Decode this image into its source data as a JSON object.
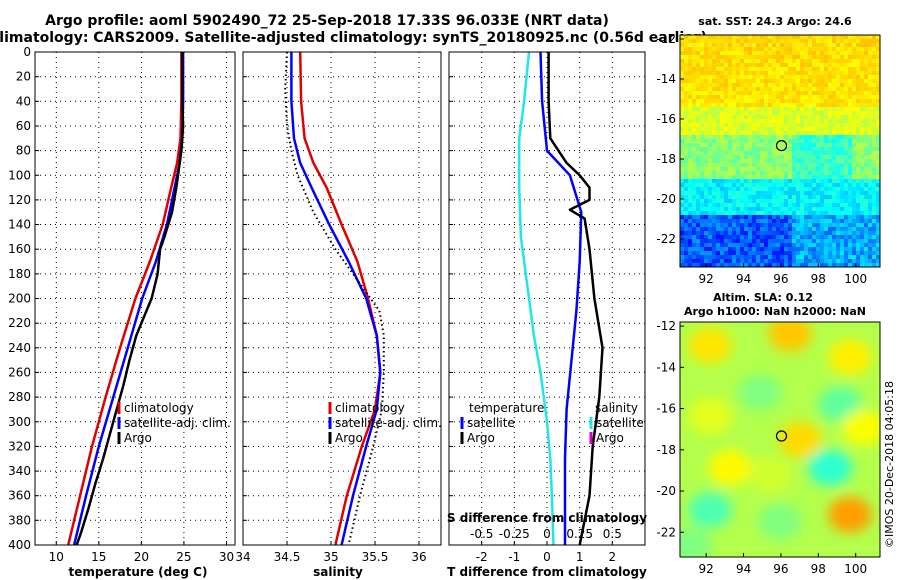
{
  "title_line1": "Argo profile: aoml 5902490_72 25-Sep-2018 17.33S 96.033E (NRT data)",
  "title_line2": "Climatology: CARS2009. Satellite-adjusted climatology: synTS_20180925.nc (0.56d earlier)",
  "watermark": "©IMOS 20-Dec-2018 04:05:18",
  "colors": {
    "climatology": "#e00000",
    "satellite": "#0000ff",
    "argo": "#000000",
    "cyan": "#22e5ec",
    "magenta": "#d000d0"
  },
  "chart_data": [
    {
      "id": "temperature",
      "type": "line",
      "xlabel": "temperature (deg C)",
      "ylabel": "depth (m)",
      "xlim": [
        7.5,
        31
      ],
      "ylim": [
        0,
        400
      ],
      "xticks": [
        10,
        15,
        20,
        25,
        30
      ],
      "yticks": [
        0,
        20,
        40,
        60,
        80,
        100,
        120,
        140,
        160,
        180,
        200,
        220,
        240,
        260,
        280,
        300,
        320,
        340,
        360,
        380,
        400
      ],
      "series": [
        {
          "name": "climatology",
          "color": "#e00000",
          "dotted": false,
          "points": [
            [
              24.7,
              0
            ],
            [
              24.7,
              40
            ],
            [
              24.6,
              70
            ],
            [
              24.2,
              90
            ],
            [
              23.5,
              110
            ],
            [
              22.5,
              140
            ],
            [
              21.0,
              170
            ],
            [
              19.3,
              200
            ],
            [
              17.5,
              240
            ],
            [
              15.8,
              280
            ],
            [
              14.2,
              320
            ],
            [
              12.8,
              360
            ],
            [
              11.4,
              400
            ]
          ]
        },
        {
          "name": "satellite-adj. clim.",
          "color": "#0000ff",
          "dotted": false,
          "points": [
            [
              24.9,
              0
            ],
            [
              24.9,
              40
            ],
            [
              24.8,
              70
            ],
            [
              24.5,
              90
            ],
            [
              23.9,
              110
            ],
            [
              23.0,
              140
            ],
            [
              21.7,
              170
            ],
            [
              20.1,
              200
            ],
            [
              18.4,
              240
            ],
            [
              16.7,
              280
            ],
            [
              15.0,
              320
            ],
            [
              13.5,
              360
            ],
            [
              12.1,
              400
            ]
          ]
        },
        {
          "name": "Argo",
          "color": "#000000",
          "dotted": false,
          "points": [
            [
              24.8,
              0
            ],
            [
              24.8,
              40
            ],
            [
              24.9,
              60
            ],
            [
              24.7,
              80
            ],
            [
              24.3,
              100
            ],
            [
              24.1,
              110
            ],
            [
              23.6,
              130
            ],
            [
              22.7,
              150
            ],
            [
              22.2,
              160
            ],
            [
              21.9,
              180
            ],
            [
              21.2,
              200
            ],
            [
              20.3,
              215
            ],
            [
              19.4,
              230
            ],
            [
              18.6,
              250
            ],
            [
              17.9,
              270
            ],
            [
              17.1,
              290
            ],
            [
              16.3,
              310
            ],
            [
              15.5,
              330
            ],
            [
              14.6,
              350
            ],
            [
              13.8,
              370
            ],
            [
              12.9,
              390
            ],
            [
              12.4,
              400
            ]
          ]
        }
      ],
      "legend": {
        "placement": "lower-right",
        "entries": [
          {
            "label": "climatology",
            "color": "#e00000"
          },
          {
            "label": "satellite-adj. clim.",
            "color": "#0000ff"
          },
          {
            "label": "Argo",
            "color": "#000000"
          }
        ]
      }
    },
    {
      "id": "salinity",
      "type": "line",
      "xlabel": "salinity",
      "ylabel": "depth (m)",
      "xlim": [
        34.0,
        36.25
      ],
      "ylim": [
        0,
        400
      ],
      "xticks": [
        34,
        34.5,
        35,
        35.5,
        36
      ],
      "yticks": [
        0,
        20,
        40,
        60,
        80,
        100,
        120,
        140,
        160,
        180,
        200,
        220,
        240,
        260,
        280,
        300,
        320,
        340,
        360,
        380,
        400
      ],
      "series": [
        {
          "name": "climatology",
          "color": "#e00000",
          "dotted": false,
          "points": [
            [
              34.65,
              0
            ],
            [
              34.66,
              40
            ],
            [
              34.7,
              70
            ],
            [
              34.8,
              90
            ],
            [
              34.95,
              110
            ],
            [
              35.12,
              140
            ],
            [
              35.3,
              170
            ],
            [
              35.42,
              200
            ],
            [
              35.52,
              230
            ],
            [
              35.56,
              260
            ],
            [
              35.5,
              290
            ],
            [
              35.35,
              320
            ],
            [
              35.18,
              360
            ],
            [
              35.05,
              400
            ]
          ]
        },
        {
          "name": "satellite-adj. clim.",
          "color": "#0000ff",
          "dotted": false,
          "points": [
            [
              34.55,
              0
            ],
            [
              34.55,
              40
            ],
            [
              34.58,
              70
            ],
            [
              34.65,
              90
            ],
            [
              34.78,
              110
            ],
            [
              34.98,
              140
            ],
            [
              35.2,
              170
            ],
            [
              35.4,
              200
            ],
            [
              35.52,
              230
            ],
            [
              35.56,
              260
            ],
            [
              35.52,
              290
            ],
            [
              35.4,
              320
            ],
            [
              35.25,
              360
            ],
            [
              35.12,
              400
            ]
          ]
        },
        {
          "name": "Argo",
          "color": "#000000",
          "dotted": true,
          "points": [
            [
              34.5,
              0
            ],
            [
              34.48,
              30
            ],
            [
              34.5,
              60
            ],
            [
              34.55,
              80
            ],
            [
              34.62,
              100
            ],
            [
              34.8,
              130
            ],
            [
              35.05,
              160
            ],
            [
              35.35,
              190
            ],
            [
              35.55,
              210
            ],
            [
              35.6,
              230
            ],
            [
              35.6,
              260
            ],
            [
              35.58,
              290
            ],
            [
              35.48,
              320
            ],
            [
              35.33,
              360
            ],
            [
              35.2,
              400
            ]
          ]
        }
      ],
      "legend": {
        "placement": "lower-right",
        "entries": [
          {
            "label": "climatology",
            "color": "#e00000"
          },
          {
            "label": "satellite-adj. clim.",
            "color": "#0000ff"
          },
          {
            "label": "Argo",
            "color": "#000000"
          }
        ]
      }
    },
    {
      "id": "difference",
      "type": "line",
      "xlabel": "T difference from climatology",
      "xlabel_top": "S difference from climatology",
      "xlim": [
        -3,
        3
      ],
      "ylim": [
        0,
        400
      ],
      "xticks": [
        -2,
        -1,
        0,
        1,
        2
      ],
      "xticks_top": [
        "-0.5",
        "-0.25",
        "0",
        "0.25",
        "0.5"
      ],
      "xticks_top_values": [
        -2,
        -1,
        0,
        1,
        2
      ],
      "yticks": [
        0,
        20,
        40,
        60,
        80,
        100,
        120,
        140,
        160,
        180,
        200,
        220,
        240,
        260,
        280,
        300,
        320,
        340,
        360,
        380,
        400
      ],
      "series": [
        {
          "name": "satellite",
          "group": "salinity",
          "color": "#22e5ec",
          "dotted": false,
          "points": [
            [
              -0.55,
              0
            ],
            [
              -0.7,
              40
            ],
            [
              -0.85,
              70
            ],
            [
              -0.85,
              110
            ],
            [
              -0.8,
              150
            ],
            [
              -0.6,
              190
            ],
            [
              -0.4,
              230
            ],
            [
              -0.2,
              260
            ],
            [
              0,
              300
            ],
            [
              0.1,
              330
            ],
            [
              0.15,
              360
            ],
            [
              0.2,
              400
            ]
          ]
        },
        {
          "name": "satellite",
          "group": "temperature",
          "color": "#0000ff",
          "dotted": false,
          "points": [
            [
              -0.2,
              0
            ],
            [
              -0.15,
              40
            ],
            [
              0.0,
              80
            ],
            [
              0.7,
              100
            ],
            [
              1.05,
              130
            ],
            [
              1.0,
              170
            ],
            [
              0.9,
              210
            ],
            [
              0.75,
              250
            ],
            [
              0.6,
              290
            ],
            [
              0.55,
              330
            ],
            [
              0.55,
              400
            ]
          ]
        },
        {
          "name": "Argo",
          "group": "temperature",
          "color": "#000000",
          "dotted": false,
          "points": [
            [
              0.05,
              0
            ],
            [
              0.05,
              40
            ],
            [
              0.1,
              70
            ],
            [
              0.6,
              90
            ],
            [
              1.0,
              100
            ],
            [
              1.3,
              110
            ],
            [
              1.3,
              120
            ],
            [
              0.7,
              128
            ],
            [
              1.15,
              135
            ],
            [
              1.3,
              160
            ],
            [
              1.45,
              200
            ],
            [
              1.7,
              240
            ],
            [
              1.6,
              280
            ],
            [
              1.4,
              320
            ],
            [
              1.3,
              360
            ],
            [
              1.0,
              400
            ]
          ]
        }
      ],
      "legend": {
        "placement": "lower",
        "entries": [
          {
            "group_title": "temperature",
            "items": [
              {
                "label": "satellite",
                "color": "#0000ff"
              },
              {
                "label": "Argo",
                "color": "#000000"
              }
            ]
          },
          {
            "group_title": "salinity",
            "items": [
              {
                "label": "satellite",
                "color": "#22e5ec"
              },
              {
                "label": "Argo",
                "color": "#d000d0"
              }
            ]
          }
        ]
      }
    },
    {
      "id": "sst_map",
      "type": "heatmap",
      "title": "sat. SST: 24.3 Argo: 24.6",
      "xticks": [
        "92",
        "94",
        "96",
        "98",
        "100"
      ],
      "yticks": [
        "-12",
        "-14",
        "-16",
        "-18",
        "-20",
        "-22"
      ],
      "xlim": [
        90.6,
        101.3
      ],
      "ylim": [
        -23.4,
        -11.8
      ],
      "marker": {
        "lon": 96.03,
        "lat": -17.33
      }
    },
    {
      "id": "sla_map",
      "type": "heatmap",
      "title": "Altim. SLA: 0.12",
      "subtitle": "Argo h1000: NaN h2000: NaN",
      "xticks": [
        "92",
        "94",
        "96",
        "98",
        "100"
      ],
      "yticks": [
        "-12",
        "-14",
        "-16",
        "-18",
        "-20",
        "-22"
      ],
      "xlim": [
        90.6,
        101.3
      ],
      "ylim": [
        -23.2,
        -11.8
      ],
      "marker": {
        "lon": 96.03,
        "lat": -17.33
      }
    }
  ]
}
